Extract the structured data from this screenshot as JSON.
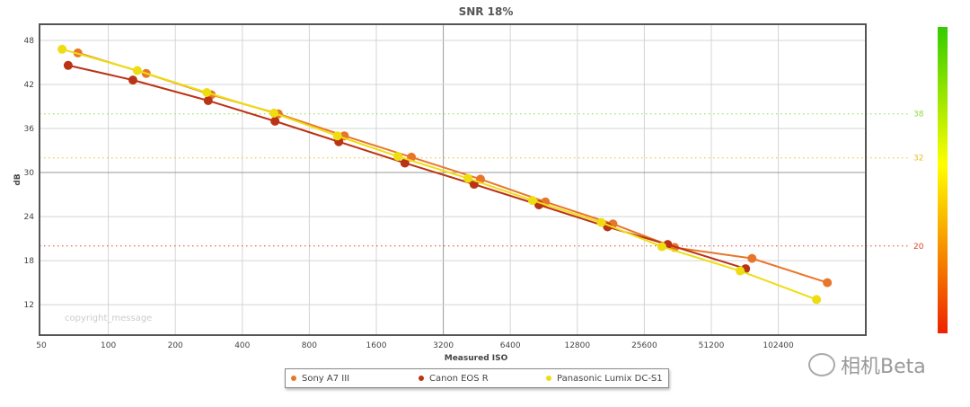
{
  "chart_data": {
    "type": "line",
    "title": "SNR 18%",
    "xlabel": "Measured ISO",
    "ylabel": "dB",
    "x_scale": "log2",
    "x_ticks": [
      "50",
      "100",
      "200",
      "400",
      "800",
      "1600",
      "3200",
      "6400",
      "12800",
      "25600",
      "51200",
      "102400"
    ],
    "y_ticks": [
      "12",
      "18",
      "24",
      "30",
      "36",
      "42",
      "48"
    ],
    "ylim": [
      9.4,
      50.2
    ],
    "grid": true,
    "legend_position": "bottom",
    "watermark_text": "copyright_message",
    "reference_lines": [
      {
        "value": 38,
        "label": "38",
        "color": "#88dd44"
      },
      {
        "value": 32,
        "label": "32",
        "color": "#eebb22"
      },
      {
        "value": 20,
        "label": "20",
        "color": "#dd4422"
      }
    ],
    "series": [
      {
        "name": "Sony A7 III",
        "color": "#e8762a",
        "x": [
          73,
          148,
          290,
          580,
          1150,
          2300,
          4700,
          9200,
          18500,
          35000,
          78000,
          170000
        ],
        "y": [
          46.3,
          43.5,
          40.6,
          38.0,
          35.0,
          32.1,
          29.1,
          26.0,
          23.0,
          19.8,
          18.3,
          15.0
        ]
      },
      {
        "name": "Canon EOS R",
        "color": "#bb3315",
        "x": [
          66,
          129,
          281,
          561,
          1085,
          2150,
          4400,
          8600,
          17500,
          32600,
          73000
        ],
        "y": [
          44.6,
          42.6,
          39.8,
          37.0,
          34.2,
          31.3,
          28.4,
          25.6,
          22.6,
          20.2,
          16.9
        ]
      },
      {
        "name": "Panasonic Lumix DC-S1",
        "color": "#eedd11",
        "x": [
          62,
          135,
          277,
          555,
          1070,
          2000,
          4130,
          8050,
          16400,
          30700,
          69000,
          152000
        ],
        "y": [
          46.8,
          43.9,
          40.9,
          38.1,
          35.0,
          32.2,
          29.2,
          26.2,
          23.2,
          19.9,
          16.6,
          12.7
        ]
      }
    ],
    "color_scale": {
      "top": "#33cc00",
      "middle": "#ffff00",
      "bottom": "#ee2200"
    }
  },
  "watermark_brand": "相机Beta"
}
